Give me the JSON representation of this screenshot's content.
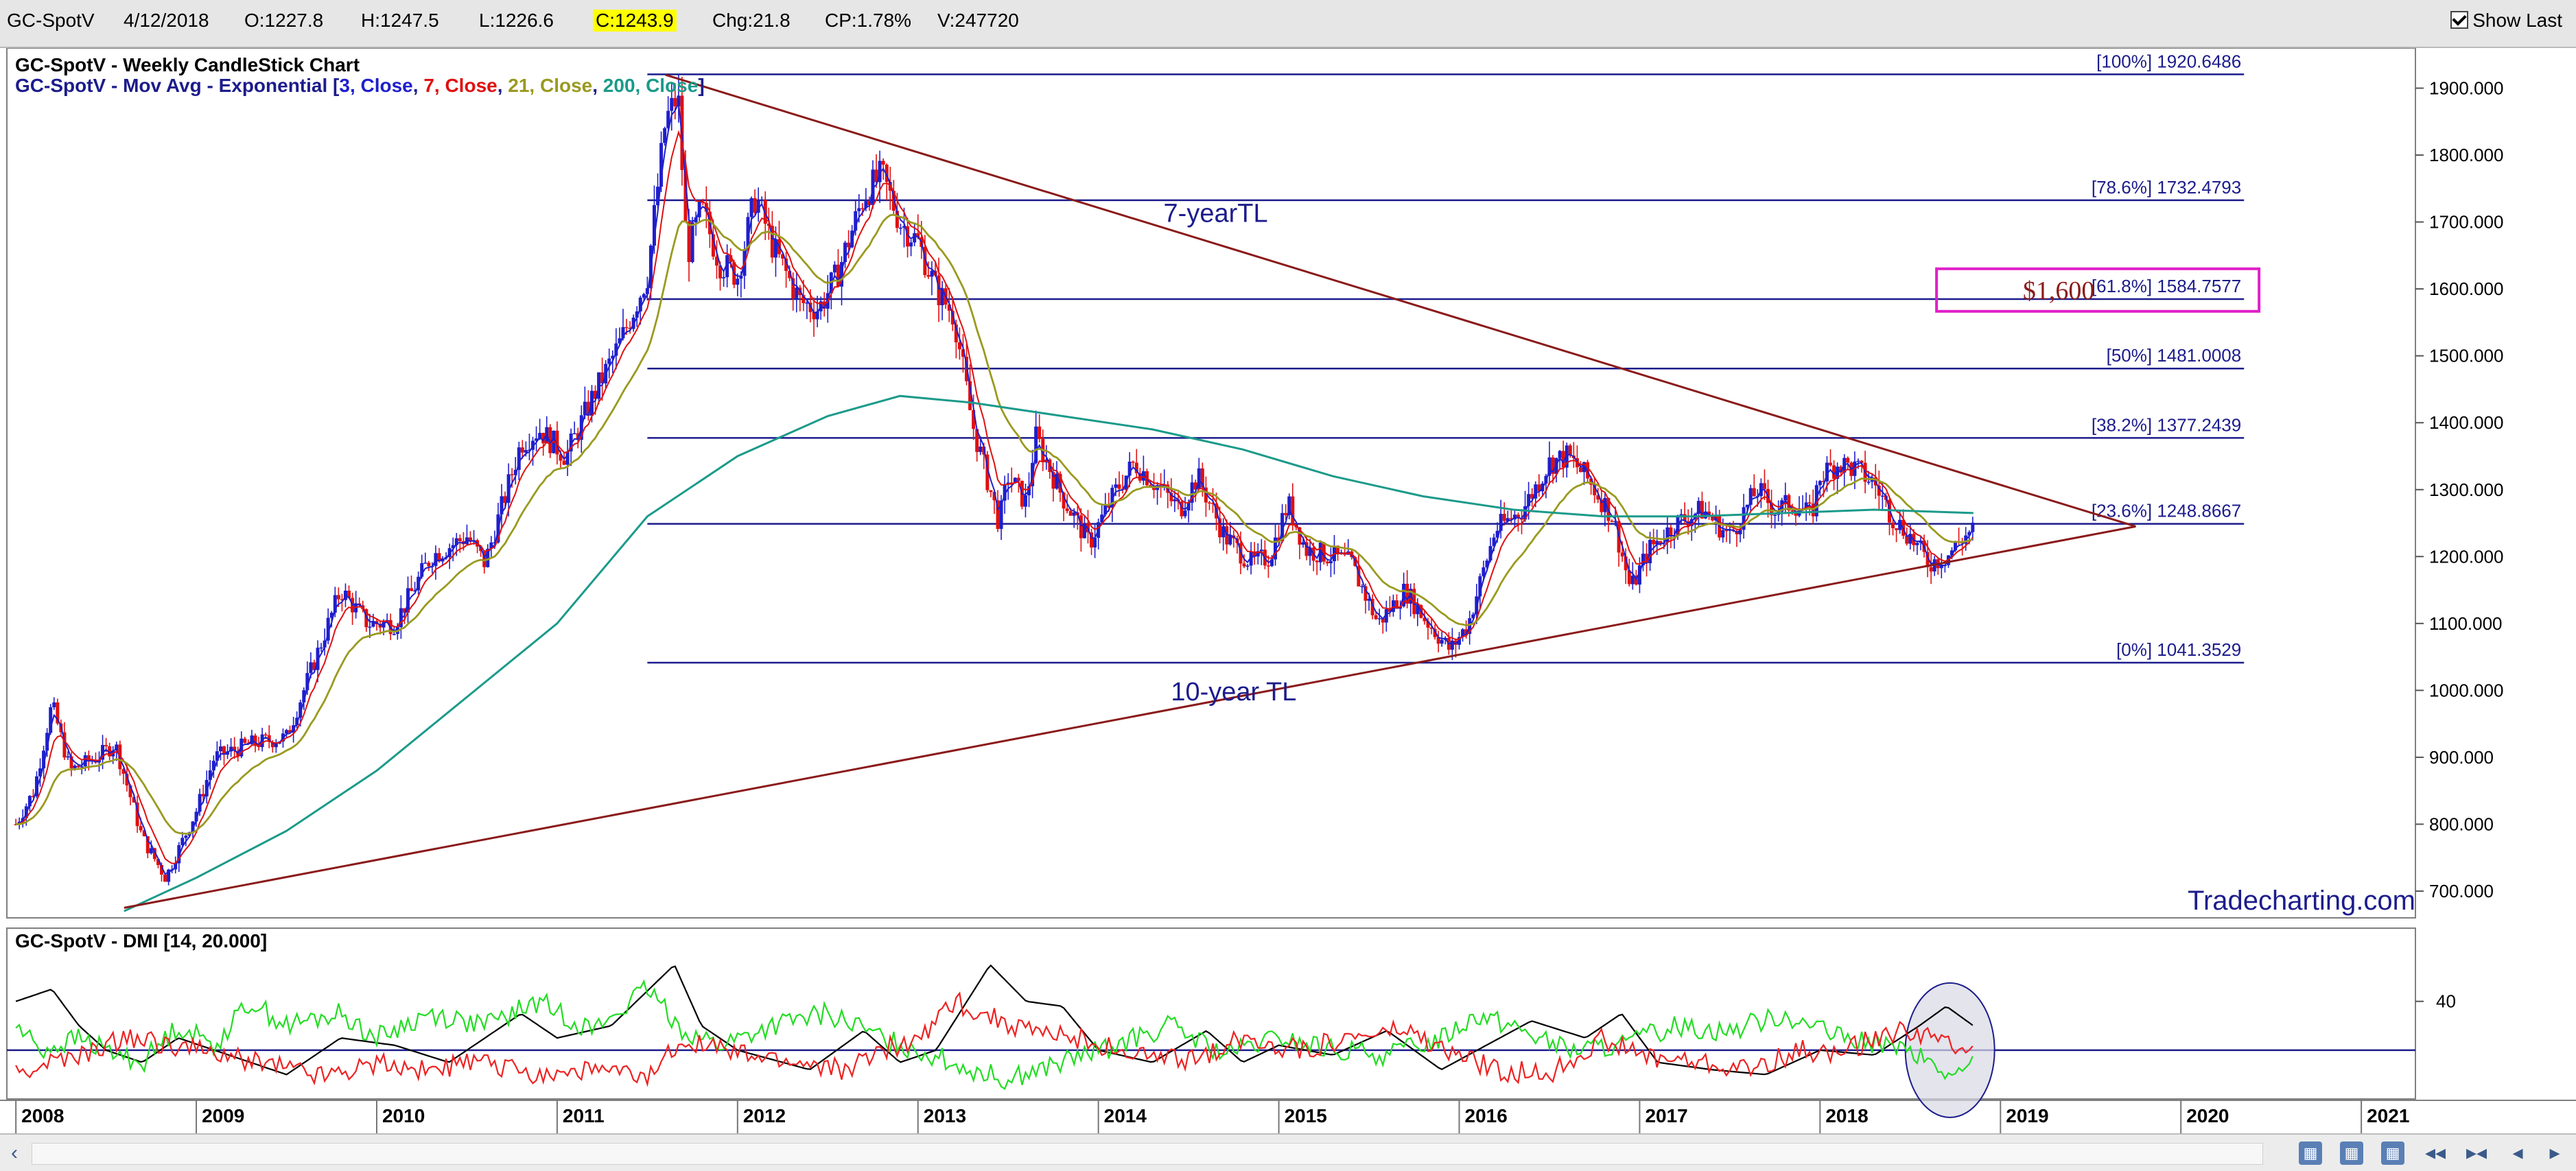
{
  "header": {
    "symbol": "GC-SpotV",
    "date": "4/12/2018",
    "open": "O:1227.8",
    "high": "H:1247.5",
    "low": "L:1226.6",
    "close": "C:1243.9",
    "change": "Chg:21.8",
    "change_pct": "CP:1.78%",
    "volume": "V:247720",
    "show_last_label": "Show Last",
    "show_last_checked": true
  },
  "colors": {
    "ema3": "#1f1fcc",
    "ema7": "#e01010",
    "ema21": "#9a9a20",
    "ema200": "#1b9a8a",
    "trendline": "#8b1a1a",
    "fib_line": "#1c1c8c",
    "highlight_box": "#e020c8",
    "dmi_plus": "#22dd22",
    "dmi_minus": "#ee2222",
    "adx": "#000000"
  },
  "chart_data": [
    {
      "type": "candlestick",
      "title": "GC-SpotV - Weekly CandleStick Chart",
      "subtitle_parts": [
        {
          "text": "GC-SpotV - Mov Avg - Exponential [",
          "color": "#1c1c8c"
        },
        {
          "text": "3, Close",
          "color": "#1f1fcc"
        },
        {
          "text": ", ",
          "color": "#1c1c8c"
        },
        {
          "text": "7, Close",
          "color": "#e01010"
        },
        {
          "text": ", ",
          "color": "#1c1c8c"
        },
        {
          "text": "21, Close",
          "color": "#9a9a20"
        },
        {
          "text": ", ",
          "color": "#1c1c8c"
        },
        {
          "text": "200, Close",
          "color": "#1b9a8a"
        },
        {
          "text": "]",
          "color": "#1c1c8c"
        }
      ],
      "x_range": [
        2007.95,
        2021.3
      ],
      "ylim": [
        660,
        1960
      ],
      "y_ticks": [
        "700.000",
        "800.000",
        "900.000",
        "1000.000",
        "1100.000",
        "1200.000",
        "1300.000",
        "1400.000",
        "1500.000",
        "1600.000",
        "1700.000",
        "1800.000",
        "1900.000"
      ],
      "x_ticks": [
        "2008",
        "2009",
        "2010",
        "2011",
        "2012",
        "2013",
        "2014",
        "2015",
        "2016",
        "2017",
        "2018",
        "2019",
        "2020",
        "2021"
      ],
      "price_path": [
        [
          2008.0,
          800
        ],
        [
          2008.1,
          850
        ],
        [
          2008.2,
          980
        ],
        [
          2008.3,
          880
        ],
        [
          2008.45,
          900
        ],
        [
          2008.55,
          920
        ],
        [
          2008.7,
          780
        ],
        [
          2008.83,
          720
        ],
        [
          2009.0,
          820
        ],
        [
          2009.1,
          900
        ],
        [
          2009.3,
          920
        ],
        [
          2009.5,
          930
        ],
        [
          2009.8,
          1150
        ],
        [
          2009.95,
          1100
        ],
        [
          2010.1,
          1100
        ],
        [
          2010.3,
          1200
        ],
        [
          2010.5,
          1230
        ],
        [
          2010.6,
          1190
        ],
        [
          2010.8,
          1370
        ],
        [
          2010.9,
          1390
        ],
        [
          2011.05,
          1350
        ],
        [
          2011.2,
          1440
        ],
        [
          2011.35,
          1520
        ],
        [
          2011.5,
          1620
        ],
        [
          2011.6,
          1850
        ],
        [
          2011.67,
          1890
        ],
        [
          2011.72,
          1650
        ],
        [
          2011.8,
          1720
        ],
        [
          2011.9,
          1640
        ],
        [
          2012.0,
          1620
        ],
        [
          2012.1,
          1740
        ],
        [
          2012.2,
          1660
        ],
        [
          2012.35,
          1580
        ],
        [
          2012.45,
          1570
        ],
        [
          2012.55,
          1620
        ],
        [
          2012.7,
          1740
        ],
        [
          2012.8,
          1770
        ],
        [
          2012.9,
          1700
        ],
        [
          2013.0,
          1670
        ],
        [
          2013.1,
          1600
        ],
        [
          2013.2,
          1560
        ],
        [
          2013.3,
          1400
        ],
        [
          2013.45,
          1250
        ],
        [
          2013.5,
          1320
        ],
        [
          2013.6,
          1280
        ],
        [
          2013.65,
          1380
        ],
        [
          2013.8,
          1290
        ],
        [
          2013.95,
          1220
        ],
        [
          2014.1,
          1300
        ],
        [
          2014.2,
          1340
        ],
        [
          2014.35,
          1300
        ],
        [
          2014.45,
          1270
        ],
        [
          2014.55,
          1320
        ],
        [
          2014.7,
          1230
        ],
        [
          2014.85,
          1190
        ],
        [
          2014.95,
          1200
        ],
        [
          2015.05,
          1280
        ],
        [
          2015.15,
          1210
        ],
        [
          2015.3,
          1200
        ],
        [
          2015.4,
          1190
        ],
        [
          2015.55,
          1100
        ],
        [
          2015.7,
          1150
        ],
        [
          2015.8,
          1110
        ],
        [
          2015.95,
          1060
        ],
        [
          2016.05,
          1100
        ],
        [
          2016.2,
          1240
        ],
        [
          2016.35,
          1270
        ],
        [
          2016.5,
          1340
        ],
        [
          2016.6,
          1350
        ],
        [
          2016.7,
          1320
        ],
        [
          2016.85,
          1260
        ],
        [
          2016.95,
          1150
        ],
        [
          2017.05,
          1210
        ],
        [
          2017.2,
          1250
        ],
        [
          2017.35,
          1270
        ],
        [
          2017.5,
          1230
        ],
        [
          2017.65,
          1300
        ],
        [
          2017.75,
          1270
        ],
        [
          2017.85,
          1280
        ],
        [
          2017.95,
          1260
        ],
        [
          2018.0,
          1320
        ],
        [
          2018.1,
          1340
        ],
        [
          2018.2,
          1330
        ],
        [
          2018.3,
          1310
        ],
        [
          2018.4,
          1260
        ],
        [
          2018.5,
          1230
        ],
        [
          2018.6,
          1190
        ],
        [
          2018.7,
          1200
        ],
        [
          2018.8,
          1230
        ],
        [
          2018.85,
          1240
        ]
      ],
      "ema200_path": [
        [
          2008.6,
          670
        ],
        [
          2009.0,
          720
        ],
        [
          2009.5,
          790
        ],
        [
          2010.0,
          880
        ],
        [
          2010.5,
          990
        ],
        [
          2011.0,
          1100
        ],
        [
          2011.5,
          1260
        ],
        [
          2012.0,
          1350
        ],
        [
          2012.5,
          1410
        ],
        [
          2012.9,
          1440
        ],
        [
          2013.3,
          1430
        ],
        [
          2013.8,
          1410
        ],
        [
          2014.3,
          1390
        ],
        [
          2014.8,
          1360
        ],
        [
          2015.3,
          1320
        ],
        [
          2015.8,
          1290
        ],
        [
          2016.3,
          1270
        ],
        [
          2016.8,
          1260
        ],
        [
          2017.3,
          1260
        ],
        [
          2017.8,
          1265
        ],
        [
          2018.3,
          1270
        ],
        [
          2018.85,
          1265
        ]
      ],
      "fib_levels": [
        {
          "label": "[100%] 1920.6486",
          "value": 1920.6486
        },
        {
          "label": "[78.6%] 1732.4793",
          "value": 1732.4793
        },
        {
          "label": "[61.8%] 1584.7577",
          "value": 1584.7577
        },
        {
          "label": "[50%] 1481.0008",
          "value": 1481.0008
        },
        {
          "label": "[38.2%] 1377.2439",
          "value": 1377.2439
        },
        {
          "label": "[23.6%] 1248.8667",
          "value": 1248.8667
        },
        {
          "label": "[0%] 1041.3529",
          "value": 1041.3529
        }
      ],
      "fib_x_range": [
        2011.5,
        2020.35
      ],
      "trendlines": [
        {
          "label": "7-yearTL",
          "from": [
            2011.6,
            1920
          ],
          "to": [
            2019.75,
            1245
          ]
        },
        {
          "label": "10-year TL",
          "from": [
            2008.6,
            675
          ],
          "to": [
            2019.75,
            1245
          ]
        }
      ],
      "annotations": [
        {
          "text": "$1,600",
          "x": 2018.95,
          "y": 1587,
          "boxed": true
        },
        {
          "text": "7-yearTL",
          "x": 2014.65,
          "y": 1700
        },
        {
          "text": "10-year TL",
          "x": 2014.75,
          "y": 985
        }
      ],
      "watermark": "Tradecharting.com"
    },
    {
      "type": "line",
      "title": "GC-SpotV - DMI [14, 20.000]",
      "ylim": [
        0,
        70
      ],
      "y_ticks": [
        "40"
      ],
      "reference_line": 20,
      "series": [
        {
          "key": "adx",
          "points": [
            [
              2008.0,
              40
            ],
            [
              2008.2,
              45
            ],
            [
              2008.35,
              30
            ],
            [
              2008.5,
              20
            ],
            [
              2008.7,
              15
            ],
            [
              2008.9,
              25
            ],
            [
              2009.1,
              20
            ],
            [
              2009.3,
              15
            ],
            [
              2009.5,
              10
            ],
            [
              2009.8,
              25
            ],
            [
              2010.1,
              22
            ],
            [
              2010.4,
              15
            ],
            [
              2010.8,
              35
            ],
            [
              2011.0,
              25
            ],
            [
              2011.3,
              30
            ],
            [
              2011.65,
              55
            ],
            [
              2011.8,
              30
            ],
            [
              2012.0,
              20
            ],
            [
              2012.4,
              12
            ],
            [
              2012.7,
              28
            ],
            [
              2012.9,
              15
            ],
            [
              2013.1,
              20
            ],
            [
              2013.4,
              55
            ],
            [
              2013.6,
              40
            ],
            [
              2013.8,
              38
            ],
            [
              2014.0,
              20
            ],
            [
              2014.3,
              15
            ],
            [
              2014.6,
              28
            ],
            [
              2014.8,
              15
            ],
            [
              2015.0,
              22
            ],
            [
              2015.3,
              18
            ],
            [
              2015.6,
              28
            ],
            [
              2015.9,
              12
            ],
            [
              2016.1,
              20
            ],
            [
              2016.4,
              32
            ],
            [
              2016.7,
              25
            ],
            [
              2016.9,
              35
            ],
            [
              2017.1,
              15
            ],
            [
              2017.4,
              12
            ],
            [
              2017.7,
              10
            ],
            [
              2018.0,
              20
            ],
            [
              2018.3,
              18
            ],
            [
              2018.55,
              30
            ],
            [
              2018.7,
              38
            ],
            [
              2018.85,
              30
            ]
          ]
        },
        {
          "key": "plus",
          "points": [
            [
              2008.0,
              30
            ],
            [
              2008.15,
              20
            ],
            [
              2008.35,
              25
            ],
            [
              2008.5,
              20
            ],
            [
              2008.7,
              15
            ],
            [
              2008.9,
              30
            ],
            [
              2009.1,
              22
            ],
            [
              2009.3,
              40
            ],
            [
              2009.5,
              30
            ],
            [
              2009.8,
              35
            ],
            [
              2010.0,
              25
            ],
            [
              2010.3,
              35
            ],
            [
              2010.6,
              30
            ],
            [
              2010.9,
              40
            ],
            [
              2011.2,
              28
            ],
            [
              2011.5,
              45
            ],
            [
              2011.7,
              28
            ],
            [
              2011.9,
              22
            ],
            [
              2012.2,
              30
            ],
            [
              2012.5,
              35
            ],
            [
              2012.8,
              25
            ],
            [
              2013.0,
              20
            ],
            [
              2013.3,
              12
            ],
            [
              2013.5,
              8
            ],
            [
              2013.8,
              15
            ],
            [
              2014.1,
              22
            ],
            [
              2014.4,
              30
            ],
            [
              2014.7,
              18
            ],
            [
              2015.0,
              25
            ],
            [
              2015.3,
              20
            ],
            [
              2015.6,
              18
            ],
            [
              2015.9,
              25
            ],
            [
              2016.1,
              35
            ],
            [
              2016.3,
              30
            ],
            [
              2016.6,
              20
            ],
            [
              2016.9,
              22
            ],
            [
              2017.2,
              30
            ],
            [
              2017.5,
              28
            ],
            [
              2017.8,
              35
            ],
            [
              2018.1,
              25
            ],
            [
              2018.4,
              22
            ],
            [
              2018.6,
              15
            ],
            [
              2018.75,
              8
            ],
            [
              2018.85,
              15
            ]
          ]
        },
        {
          "key": "minus",
          "points": [
            [
              2008.0,
              10
            ],
            [
              2008.2,
              15
            ],
            [
              2008.4,
              18
            ],
            [
              2008.6,
              25
            ],
            [
              2008.9,
              22
            ],
            [
              2009.1,
              18
            ],
            [
              2009.4,
              15
            ],
            [
              2009.7,
              10
            ],
            [
              2010.0,
              15
            ],
            [
              2010.3,
              12
            ],
            [
              2010.6,
              15
            ],
            [
              2010.9,
              10
            ],
            [
              2011.2,
              12
            ],
            [
              2011.5,
              8
            ],
            [
              2011.7,
              25
            ],
            [
              2012.0,
              18
            ],
            [
              2012.3,
              15
            ],
            [
              2012.6,
              12
            ],
            [
              2012.8,
              20
            ],
            [
              2013.0,
              25
            ],
            [
              2013.2,
              40
            ],
            [
              2013.35,
              35
            ],
            [
              2013.6,
              28
            ],
            [
              2013.9,
              25
            ],
            [
              2014.2,
              18
            ],
            [
              2014.5,
              15
            ],
            [
              2014.8,
              25
            ],
            [
              2015.1,
              20
            ],
            [
              2015.4,
              25
            ],
            [
              2015.7,
              28
            ],
            [
              2015.9,
              20
            ],
            [
              2016.2,
              12
            ],
            [
              2016.5,
              10
            ],
            [
              2016.8,
              25
            ],
            [
              2017.0,
              18
            ],
            [
              2017.3,
              15
            ],
            [
              2017.6,
              12
            ],
            [
              2017.9,
              20
            ],
            [
              2018.1,
              18
            ],
            [
              2018.3,
              25
            ],
            [
              2018.5,
              28
            ],
            [
              2018.65,
              24
            ],
            [
              2018.85,
              22
            ]
          ]
        }
      ],
      "highlight_ellipse": {
        "x": 2018.72,
        "y": 20
      }
    }
  ],
  "scrollbar": {
    "left_arrow": "‹",
    "buttons": [
      "▦",
      "▦",
      "▦",
      "◂◂",
      "▸◂",
      "◂",
      "▸"
    ]
  }
}
